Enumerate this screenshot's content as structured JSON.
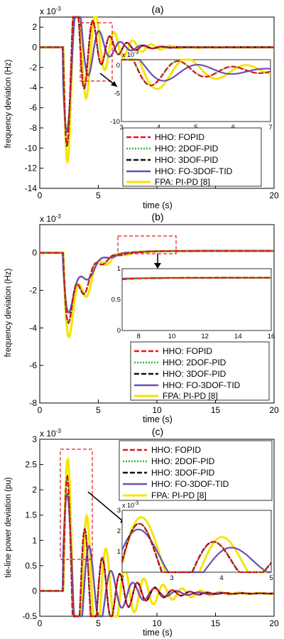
{
  "colors": {
    "HHO: FOPID": "#e8141c",
    "HHO: 2DOF-PID": "#3cb043",
    "HHO: 3DOF-PID": "#111111",
    "HHO: FO-3DOF-TID": "#6a4fb4",
    "FPA: PI-PD  [8]": "#f5e400",
    "highlight_box": "#e8141c"
  },
  "legend_entries": [
    "HHO: FOPID",
    "HHO: 2DOF-PID",
    "HHO: 3DOF-PID",
    "HHO: FO-3DOF-TID",
    "FPA: PI-PD  [8]"
  ],
  "chart_data": [
    {
      "type": "line",
      "title": "(a)",
      "xlabel": "time (s)",
      "ylabel": "frequency deviation (Hz)",
      "yscale_label": "x 10",
      "yscale_exp": "-3",
      "xlim": [
        0,
        20
      ],
      "ylim": [
        -14,
        3
      ],
      "xticks": [
        0,
        5,
        10,
        15,
        20
      ],
      "xtick_labels": [
        "0",
        "5",
        "",
        "",
        "20"
      ],
      "yticks": [
        -14,
        -12,
        -10,
        -8,
        -6,
        -4,
        -2,
        0,
        2
      ],
      "legend_position": "lower-right",
      "grid": false,
      "signal": {
        "t0": 2,
        "pre": 0,
        "final": 0,
        "dc_tau": 0,
        "osc_amp": -12,
        "osc_decay": 0.6,
        "omega": 4.3
      },
      "inset": {
        "xlim": [
          3,
          7
        ],
        "ylim": [
          -10,
          1
        ],
        "xticks": [
          3,
          4,
          5,
          6,
          7
        ],
        "yticks": [
          -10,
          -5,
          0
        ],
        "yscale_label": "x 10",
        "yscale_exp": "-3"
      }
    },
    {
      "type": "line",
      "title": "(b)",
      "xlabel": "time (s)",
      "ylabel": "frequency deviation (Hz)",
      "yscale_label": "x 10",
      "yscale_exp": "-3",
      "xlim": [
        0,
        20
      ],
      "ylim": [
        -8,
        1.5
      ],
      "xticks": [
        0,
        5,
        10,
        15,
        20
      ],
      "xtick_labels": [
        "0",
        "5",
        "10",
        "15",
        "20"
      ],
      "yticks": [
        -8,
        -6,
        -4,
        -2,
        0
      ],
      "legend_position": "lower-right",
      "grid": false,
      "signal": {
        "t0": 2,
        "pre": 0,
        "final": 0.1,
        "dc_tau": 1.2,
        "osc_amp": -2.4,
        "osc_decay": 0.8,
        "omega": 4,
        "peak_dip": -6.5
      },
      "inset": {
        "xlim": [
          7,
          16
        ],
        "ylim": [
          0,
          1
        ],
        "xticks": [
          8,
          10,
          12,
          14,
          16
        ],
        "yticks": [
          0,
          0.5,
          1
        ],
        "yscale_label": "",
        "yscale_exp": ""
      }
    },
    {
      "type": "line",
      "title": "(c)",
      "xlabel": "time (s)",
      "ylabel": "tie-line power deviation (pu)",
      "yscale_label": "x 10",
      "yscale_exp": "-3",
      "xlim": [
        0,
        20
      ],
      "ylim": [
        -0.5,
        3
      ],
      "xticks": [
        0,
        5,
        10,
        15,
        20
      ],
      "xtick_labels": [
        "0",
        "5",
        "10",
        "15",
        "20"
      ],
      "yticks": [
        -0.5,
        0,
        0.5,
        1,
        1.5,
        2,
        2.5,
        3
      ],
      "legend_position": "top-right",
      "grid": false,
      "signal": {
        "t0": 2,
        "pre": 0,
        "final": -0.05,
        "dc_tau": 4,
        "osc_amp": 2.6,
        "osc_decay": 0.4,
        "omega": 4.2
      },
      "inset": {
        "xlim": [
          2,
          5
        ],
        "ylim": [
          0,
          3
        ],
        "xticks": [
          2,
          3,
          4,
          5
        ],
        "yticks": [
          1,
          2,
          3
        ],
        "yscale_label": "x 10",
        "yscale_exp": "-3"
      }
    }
  ]
}
